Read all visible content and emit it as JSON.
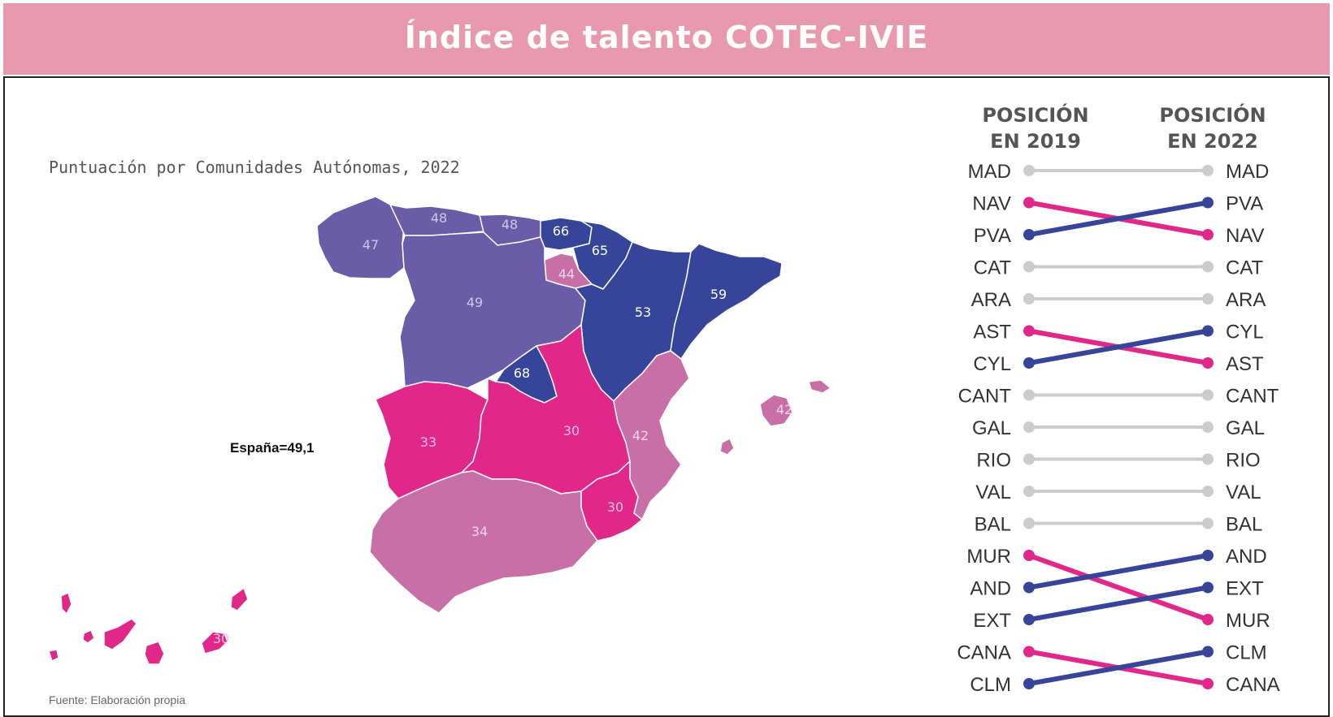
{
  "title": "Índice de talento COTEC-IVIE",
  "subtitle": "Puntuación por Comunidades Autónomas, 2022",
  "spain_average": "España=49,1",
  "source": "Fuente: Elaboración propia",
  "colors": {
    "banner": "#e899ae",
    "high": "#36449a",
    "mid": "#6a5ca6",
    "low_mid": "#c96fa8",
    "low": "#e2278a",
    "stable_line": "#cccccc",
    "up_line": "#36449a",
    "down_line": "#e2278a"
  },
  "map": {
    "regions": [
      {
        "code": "GAL",
        "name": "Galicia",
        "score": "47",
        "tier": "mid"
      },
      {
        "code": "AST",
        "name": "Asturias",
        "score": "48",
        "tier": "mid"
      },
      {
        "code": "CANT",
        "name": "Cantabria",
        "score": "48",
        "tier": "mid"
      },
      {
        "code": "PVA",
        "name": "País Vasco",
        "score": "66",
        "tier": "high"
      },
      {
        "code": "NAV",
        "name": "Navarra",
        "score": "65",
        "tier": "high"
      },
      {
        "code": "RIO",
        "name": "La Rioja",
        "score": "44",
        "tier": "low_mid"
      },
      {
        "code": "CYL",
        "name": "Castilla y León",
        "score": "49",
        "tier": "mid"
      },
      {
        "code": "ARA",
        "name": "Aragón",
        "score": "53",
        "tier": "high"
      },
      {
        "code": "CAT",
        "name": "Cataluña",
        "score": "59",
        "tier": "high"
      },
      {
        "code": "MAD",
        "name": "Madrid",
        "score": "68",
        "tier": "high"
      },
      {
        "code": "EXT",
        "name": "Extremadura",
        "score": "33",
        "tier": "low"
      },
      {
        "code": "CLM",
        "name": "Castilla-La Mancha",
        "score": "30",
        "tier": "low"
      },
      {
        "code": "VAL",
        "name": "C. Valenciana",
        "score": "42",
        "tier": "low_mid"
      },
      {
        "code": "BAL",
        "name": "Baleares",
        "score": "42",
        "tier": "low_mid"
      },
      {
        "code": "MUR",
        "name": "Murcia",
        "score": "30",
        "tier": "low"
      },
      {
        "code": "AND",
        "name": "Andalucía",
        "score": "34",
        "tier": "low_mid"
      },
      {
        "code": "CANA",
        "name": "Canarias",
        "score": "30",
        "tier": "low"
      }
    ]
  },
  "slope": {
    "header_left": [
      "POSICIÓN",
      "EN 2019"
    ],
    "header_right": [
      "POSICIÓN",
      "EN 2022"
    ],
    "rank_2019": [
      "MAD",
      "NAV",
      "PVA",
      "CAT",
      "ARA",
      "AST",
      "CYL",
      "CANT",
      "GAL",
      "RIO",
      "VAL",
      "BAL",
      "MUR",
      "AND",
      "EXT",
      "CANA",
      "CLM"
    ],
    "rank_2022": [
      "MAD",
      "PVA",
      "NAV",
      "CAT",
      "ARA",
      "CYL",
      "AST",
      "CANT",
      "GAL",
      "RIO",
      "VAL",
      "BAL",
      "AND",
      "EXT",
      "MUR",
      "CLM",
      "CANA"
    ]
  }
}
